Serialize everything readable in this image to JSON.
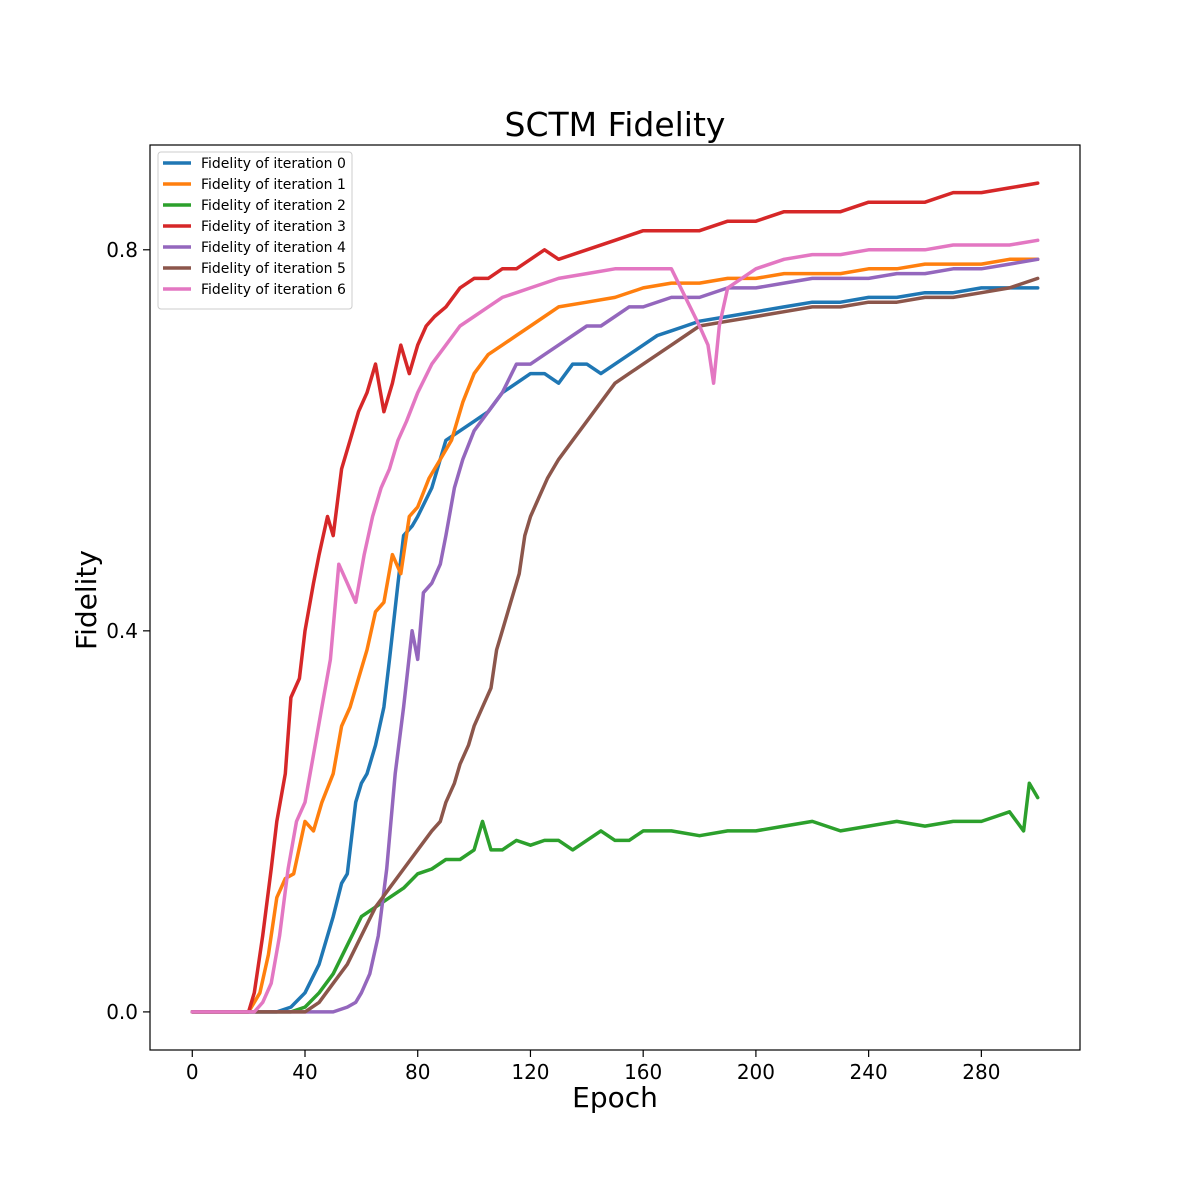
{
  "chart_data": {
    "type": "line",
    "title": "SCTM Fidelity",
    "xlabel": "Epoch",
    "ylabel": "Fidelity",
    "xlim": [
      -15,
      315
    ],
    "ylim": [
      -0.04,
      0.91
    ],
    "xticks": [
      0,
      40,
      80,
      120,
      160,
      200,
      240,
      280
    ],
    "yticks": [
      0.0,
      0.4,
      0.8
    ],
    "ytick_labels": [
      "0.0",
      "0.4",
      "0.8"
    ],
    "grid": false,
    "legend_position": "top-left",
    "series": [
      {
        "name": "Fidelity of iteration 0",
        "color": "#1f77b4",
        "x": [
          0,
          30,
          35,
          40,
          45,
          50,
          53,
          55,
          58,
          60,
          62,
          65,
          68,
          70,
          73,
          75,
          78,
          80,
          85,
          90,
          95,
          100,
          105,
          110,
          115,
          120,
          125,
          130,
          135,
          140,
          145,
          150,
          155,
          160,
          165,
          170,
          175,
          180,
          190,
          200,
          210,
          220,
          230,
          240,
          250,
          260,
          270,
          280,
          290,
          300
        ],
        "y": [
          0.0,
          0.0,
          0.005,
          0.02,
          0.05,
          0.1,
          0.135,
          0.145,
          0.22,
          0.24,
          0.25,
          0.28,
          0.32,
          0.37,
          0.45,
          0.5,
          0.51,
          0.52,
          0.55,
          0.6,
          0.61,
          0.62,
          0.63,
          0.65,
          0.66,
          0.67,
          0.67,
          0.66,
          0.68,
          0.68,
          0.67,
          0.68,
          0.69,
          0.7,
          0.71,
          0.715,
          0.72,
          0.725,
          0.73,
          0.735,
          0.74,
          0.745,
          0.745,
          0.75,
          0.75,
          0.755,
          0.755,
          0.76,
          0.76,
          0.76
        ]
      },
      {
        "name": "Fidelity of iteration 1",
        "color": "#ff7f0e",
        "x": [
          0,
          20,
          24,
          27,
          30,
          33,
          36,
          40,
          43,
          46,
          50,
          53,
          56,
          59,
          62,
          65,
          68,
          71,
          74,
          77,
          80,
          84,
          88,
          92,
          96,
          100,
          105,
          110,
          115,
          120,
          125,
          130,
          140,
          150,
          160,
          170,
          180,
          190,
          200,
          210,
          220,
          230,
          240,
          250,
          260,
          270,
          280,
          290,
          300
        ],
        "y": [
          0.0,
          0.0,
          0.02,
          0.06,
          0.12,
          0.14,
          0.145,
          0.2,
          0.19,
          0.22,
          0.25,
          0.3,
          0.32,
          0.35,
          0.38,
          0.42,
          0.43,
          0.48,
          0.46,
          0.52,
          0.53,
          0.56,
          0.58,
          0.6,
          0.64,
          0.67,
          0.69,
          0.7,
          0.71,
          0.72,
          0.73,
          0.74,
          0.745,
          0.75,
          0.76,
          0.765,
          0.765,
          0.77,
          0.77,
          0.775,
          0.775,
          0.775,
          0.78,
          0.78,
          0.785,
          0.785,
          0.785,
          0.79,
          0.79
        ]
      },
      {
        "name": "Fidelity of iteration 2",
        "color": "#2ca02c",
        "x": [
          0,
          35,
          40,
          45,
          50,
          55,
          60,
          65,
          70,
          75,
          80,
          85,
          90,
          95,
          100,
          103,
          106,
          110,
          115,
          120,
          125,
          130,
          135,
          140,
          145,
          150,
          155,
          160,
          170,
          180,
          190,
          200,
          210,
          220,
          230,
          240,
          250,
          260,
          270,
          280,
          285,
          290,
          295,
          297,
          300
        ],
        "y": [
          0.0,
          0.0,
          0.005,
          0.02,
          0.04,
          0.07,
          0.1,
          0.11,
          0.12,
          0.13,
          0.145,
          0.15,
          0.16,
          0.16,
          0.17,
          0.2,
          0.17,
          0.17,
          0.18,
          0.175,
          0.18,
          0.18,
          0.17,
          0.18,
          0.19,
          0.18,
          0.18,
          0.19,
          0.19,
          0.185,
          0.19,
          0.19,
          0.195,
          0.2,
          0.19,
          0.195,
          0.2,
          0.195,
          0.2,
          0.2,
          0.205,
          0.21,
          0.19,
          0.24,
          0.225
        ]
      },
      {
        "name": "Fidelity of iteration 3",
        "color": "#d62728",
        "x": [
          0,
          20,
          22,
          25,
          28,
          30,
          33,
          35,
          38,
          40,
          43,
          45,
          48,
          50,
          53,
          56,
          59,
          62,
          65,
          68,
          71,
          74,
          77,
          80,
          83,
          86,
          90,
          95,
          100,
          105,
          110,
          115,
          120,
          125,
          130,
          140,
          150,
          160,
          170,
          180,
          190,
          200,
          210,
          220,
          230,
          240,
          250,
          260,
          270,
          280,
          290,
          300
        ],
        "y": [
          0.0,
          0.0,
          0.02,
          0.08,
          0.15,
          0.2,
          0.25,
          0.33,
          0.35,
          0.4,
          0.45,
          0.48,
          0.52,
          0.5,
          0.57,
          0.6,
          0.63,
          0.65,
          0.68,
          0.63,
          0.66,
          0.7,
          0.67,
          0.7,
          0.72,
          0.73,
          0.74,
          0.76,
          0.77,
          0.77,
          0.78,
          0.78,
          0.79,
          0.8,
          0.79,
          0.8,
          0.81,
          0.82,
          0.82,
          0.82,
          0.83,
          0.83,
          0.84,
          0.84,
          0.84,
          0.85,
          0.85,
          0.85,
          0.86,
          0.86,
          0.865,
          0.87
        ]
      },
      {
        "name": "Fidelity of iteration 4",
        "color": "#9467bd",
        "x": [
          0,
          50,
          55,
          58,
          60,
          63,
          66,
          69,
          72,
          75,
          78,
          80,
          82,
          85,
          88,
          90,
          93,
          96,
          100,
          105,
          110,
          115,
          120,
          125,
          130,
          135,
          140,
          145,
          150,
          155,
          160,
          170,
          180,
          190,
          200,
          210,
          220,
          230,
          240,
          250,
          260,
          270,
          280,
          290,
          300
        ],
        "y": [
          0.0,
          0.0,
          0.005,
          0.01,
          0.02,
          0.04,
          0.08,
          0.15,
          0.25,
          0.32,
          0.4,
          0.37,
          0.44,
          0.45,
          0.47,
          0.5,
          0.55,
          0.58,
          0.61,
          0.63,
          0.65,
          0.68,
          0.68,
          0.69,
          0.7,
          0.71,
          0.72,
          0.72,
          0.73,
          0.74,
          0.74,
          0.75,
          0.75,
          0.76,
          0.76,
          0.765,
          0.77,
          0.77,
          0.77,
          0.775,
          0.775,
          0.78,
          0.78,
          0.785,
          0.79
        ]
      },
      {
        "name": "Fidelity of iteration 5",
        "color": "#8c564b",
        "x": [
          0,
          40,
          45,
          50,
          55,
          60,
          65,
          70,
          75,
          80,
          85,
          88,
          90,
          93,
          95,
          98,
          100,
          103,
          106,
          108,
          110,
          113,
          116,
          118,
          120,
          123,
          126,
          130,
          135,
          140,
          145,
          150,
          155,
          160,
          165,
          170,
          175,
          180,
          190,
          200,
          210,
          220,
          230,
          240,
          250,
          260,
          270,
          280,
          290,
          300
        ],
        "y": [
          0.0,
          0.0,
          0.01,
          0.03,
          0.05,
          0.08,
          0.11,
          0.13,
          0.15,
          0.17,
          0.19,
          0.2,
          0.22,
          0.24,
          0.26,
          0.28,
          0.3,
          0.32,
          0.34,
          0.38,
          0.4,
          0.43,
          0.46,
          0.5,
          0.52,
          0.54,
          0.56,
          0.58,
          0.6,
          0.62,
          0.64,
          0.66,
          0.67,
          0.68,
          0.69,
          0.7,
          0.71,
          0.72,
          0.725,
          0.73,
          0.735,
          0.74,
          0.74,
          0.745,
          0.745,
          0.75,
          0.75,
          0.755,
          0.76,
          0.77
        ]
      },
      {
        "name": "Fidelity of iteration 6",
        "color": "#e377c2",
        "x": [
          0,
          22,
          25,
          28,
          31,
          34,
          37,
          40,
          43,
          46,
          49,
          52,
          55,
          58,
          61,
          64,
          67,
          70,
          73,
          76,
          80,
          85,
          90,
          95,
          100,
          105,
          110,
          115,
          120,
          130,
          140,
          150,
          160,
          170,
          180,
          183,
          185,
          187,
          190,
          200,
          210,
          220,
          230,
          240,
          250,
          260,
          270,
          280,
          290,
          300
        ],
        "y": [
          0.0,
          0.0,
          0.01,
          0.03,
          0.08,
          0.15,
          0.2,
          0.22,
          0.27,
          0.32,
          0.37,
          0.47,
          0.45,
          0.43,
          0.48,
          0.52,
          0.55,
          0.57,
          0.6,
          0.62,
          0.65,
          0.68,
          0.7,
          0.72,
          0.73,
          0.74,
          0.75,
          0.755,
          0.76,
          0.77,
          0.775,
          0.78,
          0.78,
          0.78,
          0.72,
          0.7,
          0.66,
          0.72,
          0.76,
          0.78,
          0.79,
          0.795,
          0.795,
          0.8,
          0.8,
          0.8,
          0.805,
          0.805,
          0.805,
          0.81
        ]
      }
    ]
  }
}
